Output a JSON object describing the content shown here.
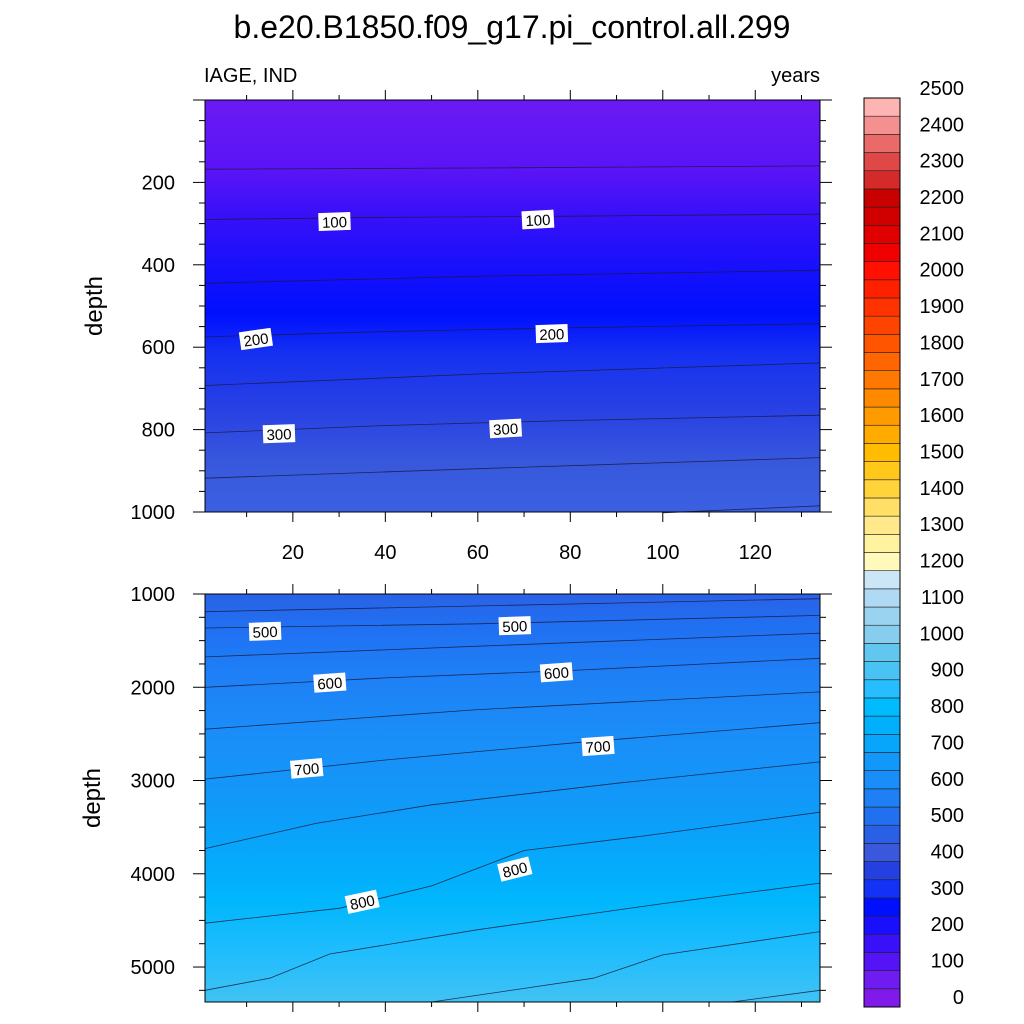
{
  "title": "b.e20.B1850.f09_g17.pi_control.all.299",
  "left_string": "IAGE, IND",
  "right_string": "years",
  "colorbar": {
    "labels": [
      "0",
      "100",
      "200",
      "300",
      "400",
      "500",
      "600",
      "700",
      "800",
      "900",
      "1000",
      "1100",
      "1200",
      "1300",
      "1400",
      "1500",
      "1600",
      "1700",
      "1800",
      "1900",
      "2000",
      "2100",
      "2200",
      "2300",
      "2400",
      "2500"
    ],
    "colors": [
      "#7f1aeb",
      "#6e1cf2",
      "#5514f6",
      "#3a10f8",
      "#1a0ffc",
      "#0010ff",
      "#1432f5",
      "#2440e0",
      "#3a58dc",
      "#2a60e6",
      "#2070f0",
      "#1f80f6",
      "#1a8ef8",
      "#1298f8",
      "#07a6fb",
      "#00b0fc",
      "#00bbfd",
      "#26beff",
      "#48c3f4",
      "#62c7ef",
      "#86cdee",
      "#9ad3ef",
      "#b0daf3",
      "#cbe6f6",
      "#fff9bc",
      "#fff3a0",
      "#ffe98a",
      "#ffdf66",
      "#ffd33a",
      "#ffc81a",
      "#ffbc00",
      "#ffab00",
      "#ff9a00",
      "#ff8a00",
      "#ff7800",
      "#ff6600",
      "#ff5400",
      "#ff4400",
      "#ff3300",
      "#ff2000",
      "#ff1000",
      "#f00000",
      "#e00000",
      "#d00000",
      "#c80000",
      "#d42a2a",
      "#e04848",
      "#ea6a6a",
      "#f49090",
      "#ffb4b4"
    ]
  },
  "chart_data": [
    {
      "type": "contour",
      "panel": "top",
      "ylabel": "depth",
      "xlim": [
        1,
        134
      ],
      "ylim": [
        1000,
        0
      ],
      "xticks": [
        20,
        40,
        60,
        80,
        100,
        120
      ],
      "yticks": [
        200,
        400,
        600,
        800,
        1000
      ],
      "contour_lines": [
        {
          "level": 50,
          "points": [
            [
              1,
              168
            ],
            [
              60,
              165
            ],
            [
              134,
              160
            ]
          ]
        },
        {
          "level": 100,
          "points": [
            [
              1,
              290
            ],
            [
              40,
              285
            ],
            [
              80,
              282
            ],
            [
              134,
              277
            ]
          ]
        },
        {
          "level": 150,
          "points": [
            [
              1,
              445
            ],
            [
              60,
              428
            ],
            [
              134,
              413
            ]
          ]
        },
        {
          "level": 200,
          "points": [
            [
              1,
              575
            ],
            [
              40,
              562
            ],
            [
              80,
              553
            ],
            [
              134,
              543
            ]
          ]
        },
        {
          "level": 250,
          "points": [
            [
              1,
              693
            ],
            [
              60,
              665
            ],
            [
              134,
              638
            ]
          ]
        },
        {
          "level": 300,
          "points": [
            [
              1,
              808
            ],
            [
              40,
              790
            ],
            [
              80,
              778
            ],
            [
              134,
              765
            ]
          ]
        },
        {
          "level": 350,
          "points": [
            [
              1,
              918
            ],
            [
              60,
              895
            ],
            [
              134,
              868
            ]
          ]
        },
        {
          "level": 400,
          "points": [
            [
              100,
              1002
            ],
            [
              134,
              985
            ]
          ]
        }
      ],
      "contour_labels": [
        {
          "text": "100",
          "x": 29,
          "y": 295,
          "angle": -2
        },
        {
          "text": "100",
          "x": 73,
          "y": 290,
          "angle": -3
        },
        {
          "text": "200",
          "x": 12,
          "y": 580,
          "angle": -8
        },
        {
          "text": "200",
          "x": 76,
          "y": 567,
          "angle": -2
        },
        {
          "text": "300",
          "x": 17,
          "y": 810,
          "angle": -2
        },
        {
          "text": "300",
          "x": 66,
          "y": 797,
          "angle": -3
        }
      ]
    },
    {
      "type": "contour",
      "panel": "bottom",
      "ylabel": "depth",
      "xlim": [
        1,
        134
      ],
      "ylim": [
        5375,
        1000
      ],
      "xticks": [
        20,
        40,
        60,
        80,
        100,
        120
      ],
      "yticks": [
        1000,
        2000,
        3000,
        4000,
        5000
      ],
      "contour_lines": [
        {
          "level": 450,
          "points": [
            [
              1,
              1190
            ],
            [
              134,
              1050
            ]
          ]
        },
        {
          "level": 500,
          "points": [
            [
              1,
              1365
            ],
            [
              60,
              1320
            ],
            [
              134,
              1230
            ]
          ]
        },
        {
          "level": 550,
          "points": [
            [
              1,
              1675
            ],
            [
              60,
              1560
            ],
            [
              134,
              1420
            ]
          ]
        },
        {
          "level": 600,
          "points": [
            [
              1,
              2000
            ],
            [
              40,
              1900
            ],
            [
              80,
              1820
            ],
            [
              134,
              1690
            ]
          ]
        },
        {
          "level": 650,
          "points": [
            [
              1,
              2450
            ],
            [
              60,
              2240
            ],
            [
              134,
              2050
            ]
          ]
        },
        {
          "level": 700,
          "points": [
            [
              1,
              2985
            ],
            [
              40,
              2780
            ],
            [
              80,
              2600
            ],
            [
              134,
              2380
            ]
          ]
        },
        {
          "level": 750,
          "points": [
            [
              1,
              3730
            ],
            [
              25,
              3460
            ],
            [
              50,
              3260
            ],
            [
              90,
              3030
            ],
            [
              134,
              2800
            ]
          ]
        },
        {
          "level": 800,
          "points": [
            [
              1,
              4530
            ],
            [
              30,
              4370
            ],
            [
              50,
              4130
            ],
            [
              70,
              3750
            ],
            [
              95,
              3600
            ],
            [
              134,
              3340
            ]
          ]
        },
        {
          "level": 850,
          "points": [
            [
              1,
              5250
            ],
            [
              15,
              5120
            ],
            [
              28,
              4860
            ],
            [
              60,
              4600
            ],
            [
              100,
              4320
            ],
            [
              134,
              4100
            ]
          ]
        },
        {
          "level": 900,
          "points": [
            [
              50,
              5375
            ],
            [
              85,
              5120
            ],
            [
              100,
              4870
            ],
            [
              134,
              4620
            ]
          ]
        },
        {
          "level": 950,
          "points": [
            [
              115,
              5375
            ],
            [
              134,
              5250
            ]
          ]
        }
      ],
      "contour_labels": [
        {
          "text": "500",
          "x": 14,
          "y": 1400,
          "angle": -2
        },
        {
          "text": "500",
          "x": 68,
          "y": 1340,
          "angle": -2
        },
        {
          "text": "600",
          "x": 28,
          "y": 1950,
          "angle": -4
        },
        {
          "text": "600",
          "x": 77,
          "y": 1840,
          "angle": -4
        },
        {
          "text": "700",
          "x": 23,
          "y": 2870,
          "angle": -5
        },
        {
          "text": "700",
          "x": 86,
          "y": 2630,
          "angle": -4
        },
        {
          "text": "800",
          "x": 35,
          "y": 4300,
          "angle": -12
        },
        {
          "text": "800",
          "x": 68,
          "y": 3950,
          "angle": -14
        }
      ]
    }
  ]
}
